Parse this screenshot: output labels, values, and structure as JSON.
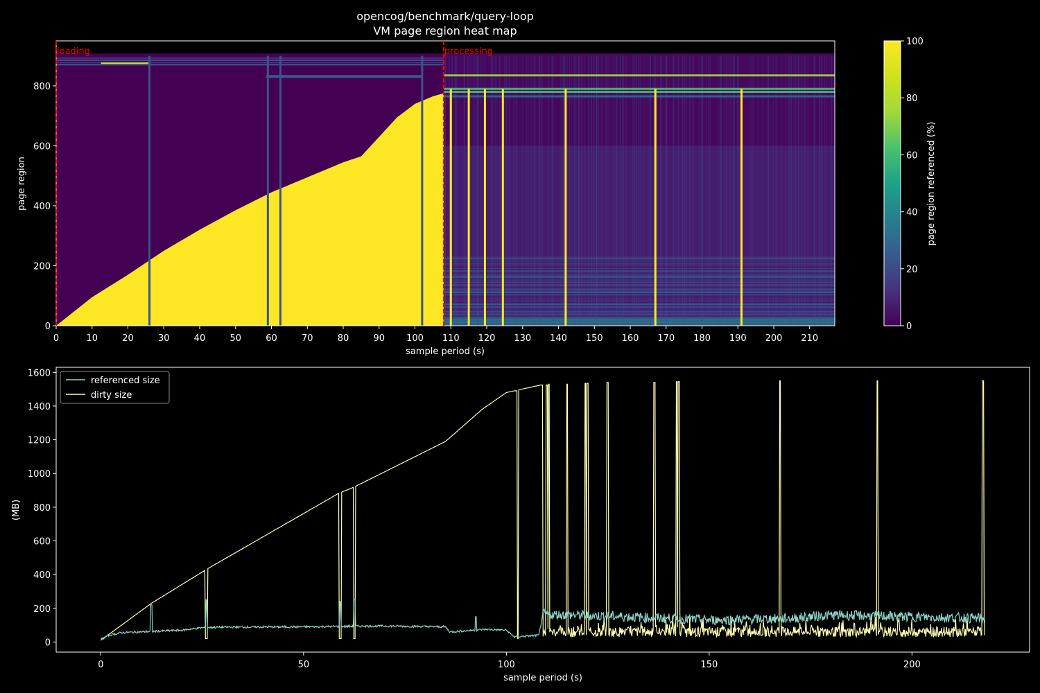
{
  "figure": {
    "background": "#000000",
    "foreground": "#ffffff"
  },
  "chart_data": [
    {
      "type": "heatmap",
      "title": "opencog/benchmark/query-loop",
      "subtitle": "VM page region heat map",
      "xlabel": "sample period (s)",
      "ylabel": "page region",
      "xlim": [
        0,
        217
      ],
      "ylim": [
        0,
        950
      ],
      "x_ticks": [
        0,
        10,
        20,
        30,
        40,
        50,
        60,
        70,
        80,
        90,
        100,
        110,
        120,
        130,
        140,
        150,
        160,
        170,
        180,
        190,
        200,
        210
      ],
      "y_ticks": [
        0,
        200,
        400,
        600,
        800
      ],
      "colorbar": {
        "label": "page region referenced (%)",
        "range": [
          0,
          100
        ],
        "ticks": [
          0,
          20,
          40,
          60,
          80,
          100
        ],
        "colormap": "viridis"
      },
      "phase_markers": [
        {
          "label": "loading",
          "x": 0,
          "color": "#ff0000"
        },
        {
          "label": "processing",
          "x": 108,
          "color": "#ff0000"
        }
      ],
      "loading_growth": {
        "note_x": [
          0,
          10,
          20,
          30,
          40,
          50,
          60,
          70,
          80,
          85,
          90,
          95,
          100,
          105,
          108
        ],
        "note_y": [
          0,
          95,
          170,
          250,
          320,
          385,
          445,
          495,
          545,
          565,
          630,
          695,
          740,
          765,
          775
        ]
      },
      "full_reference_columns_x": [
        110,
        115,
        119.5,
        124.5,
        142,
        167,
        191
      ],
      "gap_columns_x": [
        26,
        59,
        62.5,
        102
      ],
      "hot_rows_y": [
        835,
        790,
        780,
        765
      ]
    },
    {
      "type": "line",
      "xlabel": "sample period (s)",
      "ylabel": "(MB)",
      "xlim": [
        -11,
        229
      ],
      "ylim": [
        -60,
        1630
      ],
      "x_ticks": [
        0,
        50,
        100,
        150,
        200
      ],
      "y_ticks": [
        0,
        200,
        400,
        600,
        800,
        1000,
        1200,
        1400,
        1600
      ],
      "legend": {
        "position": "top-left"
      },
      "series": [
        {
          "name": "referenced size",
          "color": "#8dd3c7",
          "profile": [
            [
              0,
              15
            ],
            [
              2,
              40
            ],
            [
              5,
              55
            ],
            [
              10,
              60
            ],
            [
              20,
              70
            ],
            [
              25,
              85
            ],
            [
              30,
              88
            ],
            [
              50,
              90
            ],
            [
              70,
              95
            ],
            [
              85,
              90
            ],
            [
              86,
              60
            ],
            [
              95,
              75
            ],
            [
              100,
              70
            ],
            [
              102,
              30
            ],
            [
              108,
              40
            ],
            [
              109,
              165
            ],
            [
              130,
              150
            ],
            [
              150,
              130
            ],
            [
              170,
              140
            ],
            [
              180,
              160
            ],
            [
              200,
              150
            ],
            [
              218,
              140
            ]
          ],
          "spikes": [
            [
              12.5,
              220
            ],
            [
              26,
              250
            ],
            [
              59,
              240
            ],
            [
              62.5,
              250
            ],
            [
              92.5,
              150
            ]
          ]
        },
        {
          "name": "dirty size",
          "color": "#ffffb3",
          "profile": [
            [
              0,
              10
            ],
            [
              12.5,
              230
            ],
            [
              26,
              430
            ],
            [
              58.5,
              880
            ],
            [
              62.5,
              920
            ],
            [
              85,
              1190
            ],
            [
              94,
              1380
            ],
            [
              100,
              1480
            ],
            [
              108.5,
              1525
            ]
          ],
          "dips": [
            [
              26,
              400
            ],
            [
              59,
              880
            ],
            [
              62.5,
              920
            ],
            [
              102.5,
              1490
            ]
          ],
          "post_baseline": 60,
          "spikes": [
            [
              102.5,
              1490
            ],
            [
              110,
              1525
            ],
            [
              110.5,
              1530
            ],
            [
              115,
              1530
            ],
            [
              119.5,
              1535
            ],
            [
              120,
              1535
            ],
            [
              125,
              1540
            ],
            [
              136.5,
              1540
            ],
            [
              142,
              1545
            ],
            [
              142.5,
              1545
            ],
            [
              167.5,
              1550
            ],
            [
              191.5,
              1550
            ],
            [
              217.5,
              1550
            ]
          ]
        }
      ]
    }
  ]
}
